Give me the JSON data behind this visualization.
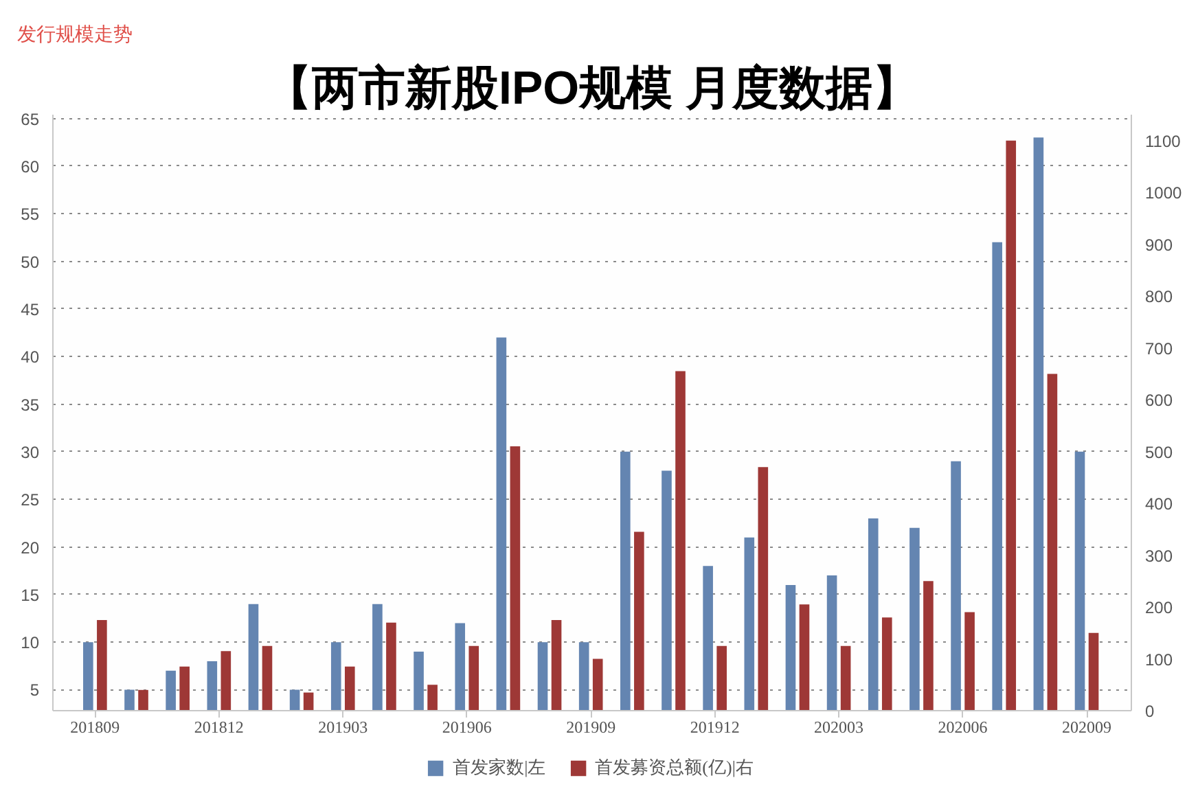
{
  "chart_data": {
    "type": "bar",
    "title": "【两市新股IPO规模 月度数据】",
    "annotations": [
      "发行规模走势"
    ],
    "categories": [
      "201809",
      null,
      null,
      "201812",
      null,
      null,
      "201903",
      null,
      null,
      "201906",
      null,
      null,
      "201909",
      null,
      null,
      "201912",
      null,
      null,
      "202003",
      null,
      null,
      "202006",
      null,
      null,
      "202009"
    ],
    "series": [
      {
        "name": "首发家数|左",
        "color": "#6485b1",
        "values": [
          10,
          5,
          7,
          8,
          14,
          5,
          10,
          14,
          9,
          12,
          42,
          10,
          10,
          30,
          28,
          18,
          21,
          16,
          17,
          23,
          22,
          29,
          52,
          63,
          30
        ]
      },
      {
        "name": "首发募资总额(亿)|右",
        "color": "#9e3836",
        "axis": "y2",
        "values": [
          175,
          40,
          85,
          115,
          125,
          35,
          85,
          170,
          50,
          125,
          510,
          175,
          100,
          345,
          655,
          125,
          470,
          205,
          125,
          180,
          250,
          190,
          1100,
          650,
          150
        ]
      }
    ],
    "ylim": [
      2.8,
      65.4
    ],
    "yticks": [
      5,
      10,
      15,
      20,
      25,
      30,
      35,
      40,
      45,
      50,
      55,
      60,
      65
    ],
    "y2lim": [
      0,
      1150
    ],
    "y2ticks": [
      0,
      100,
      200,
      300,
      400,
      500,
      600,
      700,
      800,
      900,
      1000,
      1100
    ],
    "grid": "y",
    "legend": "bottom"
  }
}
